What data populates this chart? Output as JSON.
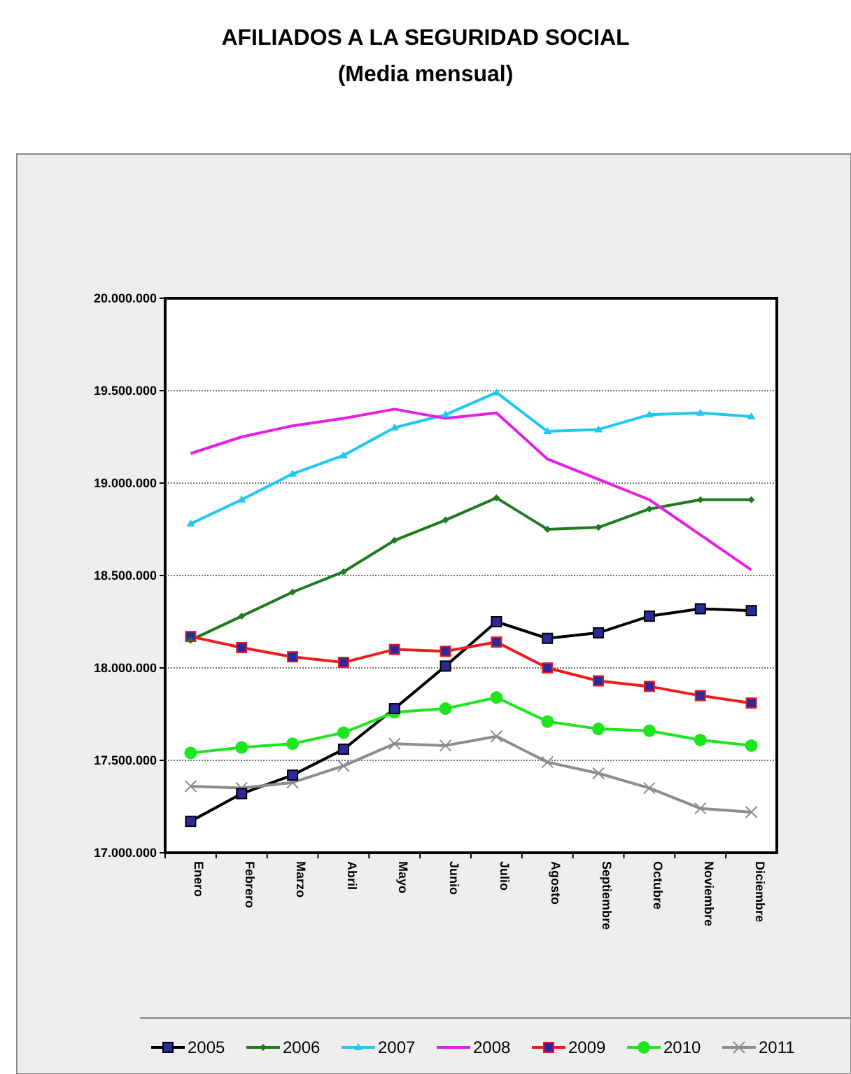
{
  "chart_data": {
    "type": "line",
    "title": "AFILIADOS A LA SEGURIDAD SOCIAL",
    "subtitle": "(Media mensual)",
    "categories": [
      "Enero",
      "Febrero",
      "Marzo",
      "Abril",
      "Mayo",
      "Junio",
      "Julio",
      "Agosto",
      "Septiembre",
      "Octubre",
      "Noviembre",
      "Diciembre"
    ],
    "ylim": [
      17000000,
      20000000
    ],
    "yticks": [
      {
        "value": 17000000,
        "label": "17.000.000"
      },
      {
        "value": 17500000,
        "label": "17.500.000"
      },
      {
        "value": 18000000,
        "label": "18.000.000"
      },
      {
        "value": 18500000,
        "label": "18.500.000"
      },
      {
        "value": 19000000,
        "label": "19.000.000"
      },
      {
        "value": 19500000,
        "label": "19.500.000"
      },
      {
        "value": 20000000,
        "label": "20.000.000"
      }
    ],
    "grid": "y",
    "legend": "bottom",
    "series": [
      {
        "name": "2005",
        "color": "#000000",
        "marker": "square",
        "values": [
          17170000,
          17320000,
          17420000,
          17560000,
          17780000,
          18010000,
          18250000,
          18160000,
          18190000,
          18280000,
          18320000,
          18310000
        ]
      },
      {
        "name": "2006",
        "color": "#1e7a1e",
        "marker": "diamond",
        "values": [
          18150000,
          18280000,
          18410000,
          18520000,
          18690000,
          18800000,
          18920000,
          18750000,
          18760000,
          18860000,
          18910000,
          18910000
        ]
      },
      {
        "name": "2007",
        "color": "#1ec8f0",
        "marker": "triangle",
        "values": [
          18780000,
          18910000,
          19050000,
          19150000,
          19300000,
          19370000,
          19490000,
          19280000,
          19290000,
          19370000,
          19380000,
          19360000
        ]
      },
      {
        "name": "2008",
        "color": "#e61ee6",
        "marker": "none",
        "values": [
          19160000,
          19250000,
          19310000,
          19350000,
          19400000,
          19350000,
          19380000,
          19130000,
          19020000,
          18910000,
          18720000,
          18530000
        ]
      },
      {
        "name": "2009",
        "color": "#ee1c1c",
        "marker": "square",
        "values": [
          18170000,
          18110000,
          18060000,
          18030000,
          18100000,
          18090000,
          18140000,
          18000000,
          17930000,
          17900000,
          17850000,
          17810000
        ]
      },
      {
        "name": "2010",
        "color": "#1ee61e",
        "marker": "circle",
        "values": [
          17540000,
          17570000,
          17590000,
          17650000,
          17760000,
          17780000,
          17840000,
          17710000,
          17670000,
          17660000,
          17610000,
          17580000
        ]
      },
      {
        "name": "2011",
        "color": "#8c8c8c",
        "marker": "cross",
        "values": [
          17360000,
          17350000,
          17380000,
          17470000,
          17590000,
          17580000,
          17630000,
          17490000,
          17430000,
          17350000,
          17240000,
          17220000
        ]
      }
    ]
  }
}
